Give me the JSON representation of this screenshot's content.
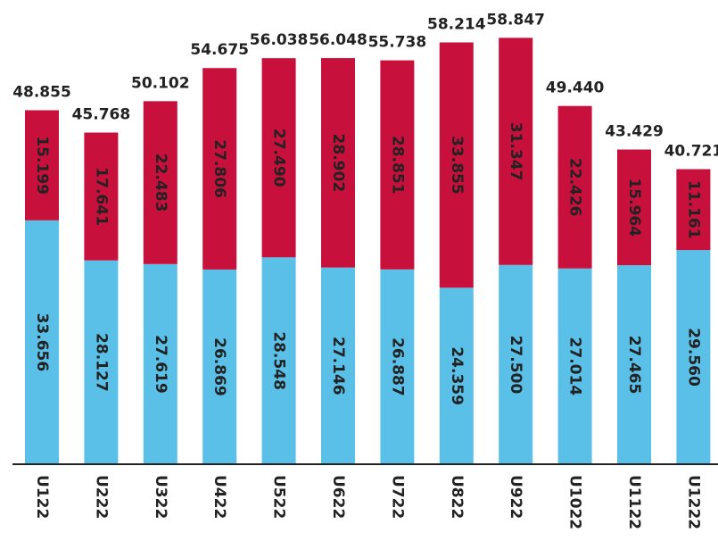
{
  "chart_data": {
    "type": "stacked_bar",
    "categories": [
      "U122",
      "U222",
      "U322",
      "U422",
      "U522",
      "U622",
      "U722",
      "U822",
      "U922",
      "U1022",
      "U1122",
      "U1222"
    ],
    "series": [
      {
        "color": "#5bc0e8",
        "values": [
          33.656,
          28.127,
          27.619,
          26.869,
          28.548,
          27.146,
          26.887,
          24.359,
          27.5,
          27.014,
          27.465,
          29.56
        ],
        "value_labels": [
          "33.656",
          "28.127",
          "27.619",
          "26.869",
          "28.548",
          "27.146",
          "26.887",
          "24.359",
          "27.500",
          "27.014",
          "27.465",
          "29.560"
        ]
      },
      {
        "color": "#c8103c",
        "values": [
          15.199,
          17.641,
          22.483,
          27.806,
          27.49,
          28.902,
          28.851,
          33.855,
          31.347,
          22.426,
          15.964,
          11.161
        ],
        "value_labels": [
          "15.199",
          "17.641",
          "22.483",
          "27.806",
          "27.490",
          "28.902",
          "28.851",
          "33.855",
          "31.347",
          "22.426",
          "15.964",
          "11.161"
        ]
      }
    ],
    "totals": [
      48.855,
      45.768,
      50.102,
      54.675,
      56.038,
      56.048,
      55.738,
      58.214,
      58.847,
      49.44,
      43.429,
      40.721
    ],
    "total_labels": [
      "48.855",
      "45.768",
      "50.102",
      "54.675",
      "56.038",
      "56.048",
      "55.738",
      "58.214",
      "58.847",
      "49.440",
      "43.429",
      "40.721"
    ],
    "ylim": [
      0,
      60
    ]
  }
}
